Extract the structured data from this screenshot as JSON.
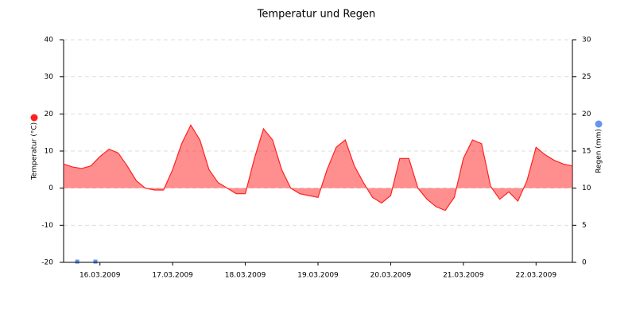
{
  "chart_data": {
    "type": "area",
    "title": "Temperatur und Regen",
    "xlim": [
      0,
      168
    ],
    "xticks": [
      {
        "value": 12,
        "label": "16.03.2009"
      },
      {
        "value": 36,
        "label": "17.03.2009"
      },
      {
        "value": 60,
        "label": "18.03.2009"
      },
      {
        "value": 84,
        "label": "19.03.2009"
      },
      {
        "value": 108,
        "label": "20.03.2009"
      },
      {
        "value": 132,
        "label": "21.03.2009"
      },
      {
        "value": 156,
        "label": "22.03.2009"
      }
    ],
    "ylim": [
      -20,
      40
    ],
    "yticks": [
      -20,
      -10,
      0,
      10,
      20,
      30,
      40
    ],
    "y2lim": [
      0,
      30
    ],
    "y2ticks": [
      0,
      5,
      10,
      15,
      20,
      25,
      30
    ],
    "grid": true,
    "series": [
      {
        "name": "Temperatur (°C)",
        "color": "#ff2020",
        "x": [
          0,
          3,
          6,
          9,
          12,
          15,
          18,
          21,
          24,
          27,
          30,
          33,
          36,
          39,
          42,
          45,
          48,
          51,
          54,
          57,
          60,
          63,
          66,
          69,
          72,
          75,
          78,
          81,
          84,
          87,
          90,
          93,
          96,
          99,
          102,
          105,
          108,
          111,
          114,
          117,
          120,
          123,
          126,
          129,
          132,
          135,
          138,
          141,
          144,
          147,
          150,
          153,
          156,
          159,
          162,
          165,
          168
        ],
        "values": [
          6.5,
          5.7,
          5.3,
          6,
          8.5,
          10.5,
          9.5,
          6,
          2,
          0,
          -0.5,
          -0.5,
          5,
          12,
          17,
          13,
          5,
          1.5,
          0,
          -1.5,
          -1.5,
          8,
          16,
          13,
          5,
          0,
          -1.5,
          -2,
          -2.5,
          5,
          11,
          13,
          6,
          1.5,
          -2.5,
          -4,
          -2,
          8,
          8,
          0,
          -3,
          -5,
          -6,
          -2.5,
          8,
          13,
          12,
          0.5,
          -3,
          -1,
          -3.5,
          2,
          11,
          9,
          7.5,
          6.5,
          6
        ]
      },
      {
        "name": "Regen (mm)",
        "color": "#6495ed",
        "axis": "y2",
        "x": [
          4.5,
          10.5
        ],
        "values": [
          0.1,
          0.1
        ]
      }
    ]
  }
}
